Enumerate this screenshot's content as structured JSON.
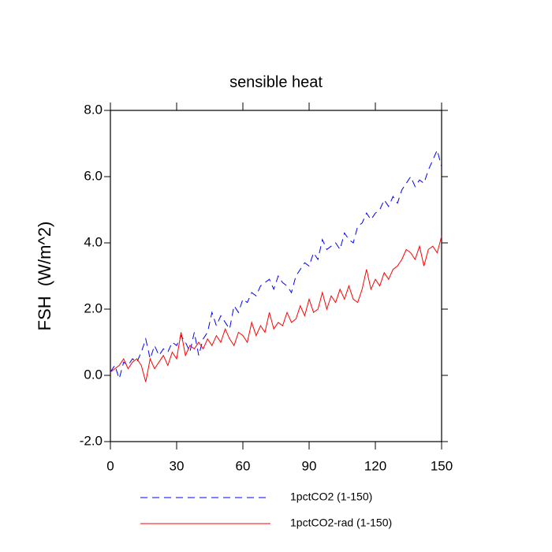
{
  "chart_data": {
    "type": "line",
    "title": "sensible heat",
    "y_label": "FSH  (W/m^2)",
    "x": [
      0,
      2,
      4,
      6,
      8,
      10,
      12,
      14,
      16,
      18,
      20,
      22,
      24,
      26,
      28,
      30,
      32,
      34,
      36,
      38,
      40,
      42,
      44,
      46,
      48,
      50,
      52,
      54,
      56,
      58,
      60,
      62,
      64,
      66,
      68,
      70,
      72,
      74,
      76,
      78,
      80,
      82,
      84,
      86,
      88,
      90,
      92,
      94,
      96,
      98,
      100,
      102,
      104,
      106,
      108,
      110,
      112,
      114,
      116,
      118,
      120,
      122,
      124,
      126,
      128,
      130,
      132,
      134,
      136,
      138,
      140,
      142,
      144,
      146,
      148,
      150
    ],
    "series": [
      {
        "name": "1pctCO2 (1-150)",
        "color": "#0000ff",
        "line_style": "dashed",
        "values": [
          0.1,
          0.3,
          -0.1,
          0.4,
          0.3,
          0.5,
          0.4,
          0.7,
          1.1,
          0.5,
          0.9,
          0.6,
          0.8,
          0.7,
          1.0,
          0.9,
          1.2,
          1.0,
          0.7,
          1.3,
          0.6,
          1.1,
          1.3,
          1.9,
          1.5,
          1.8,
          1.6,
          1.4,
          2.1,
          1.9,
          2.3,
          2.2,
          2.5,
          2.4,
          2.7,
          2.8,
          2.9,
          2.6,
          3.0,
          2.8,
          2.7,
          2.5,
          3.0,
          3.2,
          3.4,
          3.3,
          3.7,
          3.5,
          4.1,
          3.8,
          3.9,
          4.0,
          3.8,
          4.3,
          4.1,
          4.0,
          4.5,
          4.6,
          4.9,
          4.7,
          4.9,
          5.0,
          5.3,
          5.1,
          5.4,
          5.2,
          5.6,
          5.8,
          6.0,
          5.7,
          5.9,
          5.8,
          6.2,
          6.5,
          6.8,
          6.3
        ]
      },
      {
        "name": "1pctCO2-rad (1-150)",
        "color": "#ff0000",
        "line_style": "solid",
        "values": [
          0.1,
          0.2,
          0.3,
          0.5,
          0.2,
          0.4,
          0.5,
          0.3,
          -0.2,
          0.5,
          0.2,
          0.4,
          0.6,
          0.3,
          0.7,
          0.5,
          1.3,
          0.6,
          0.9,
          0.8,
          1.0,
          0.8,
          1.1,
          0.9,
          1.2,
          1.0,
          1.4,
          1.1,
          0.9,
          1.3,
          1.2,
          1.0,
          1.6,
          1.2,
          1.5,
          1.3,
          1.9,
          1.4,
          1.6,
          1.5,
          1.9,
          1.6,
          1.7,
          2.1,
          1.8,
          2.3,
          1.9,
          2.0,
          2.5,
          2.0,
          2.4,
          2.2,
          2.6,
          2.3,
          2.7,
          2.3,
          2.2,
          2.6,
          3.2,
          2.6,
          2.9,
          2.7,
          3.1,
          2.9,
          3.2,
          3.3,
          3.5,
          3.8,
          3.7,
          3.5,
          3.9,
          3.3,
          3.8,
          3.9,
          3.7,
          4.2
        ]
      }
    ],
    "xlim": [
      0,
      150
    ],
    "xticks": [
      0,
      30,
      60,
      90,
      120,
      150
    ],
    "ylim": [
      -2,
      8
    ],
    "yticks": [
      {
        "value": -2,
        "label": "-2.0"
      },
      {
        "value": 0,
        "label": "0.0"
      },
      {
        "value": 2,
        "label": "2.0"
      },
      {
        "value": 4,
        "label": "4.0"
      },
      {
        "value": 6,
        "label": "6.0"
      },
      {
        "value": 8,
        "label": "8.0"
      }
    ],
    "grid": false
  }
}
